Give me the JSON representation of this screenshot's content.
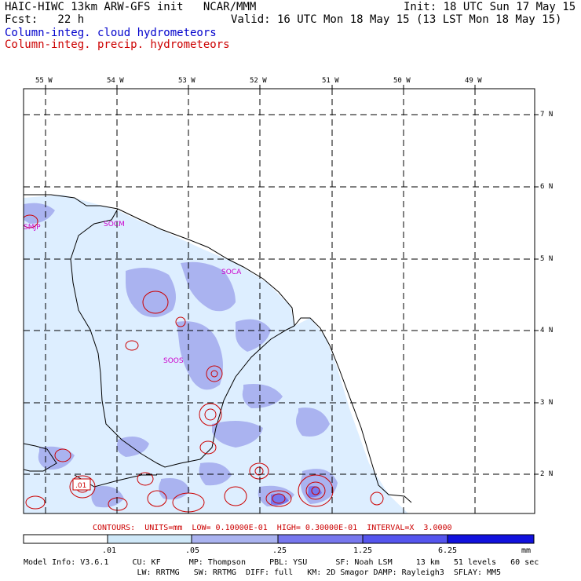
{
  "header": {
    "title_left": "HAIC-HIWC 13km ARW-GFS init   NCAR/MMM",
    "init": "Init: 18 UTC Sun 17 May 15",
    "fcst": "Fcst:   22 h",
    "valid": "Valid: 16 UTC Mon 18 May 15 (13 LST Mon 18 May 15)",
    "field_cloud": "Column-integ. cloud hydrometeors",
    "field_precip": "Column-integ. precip. hydrometeors"
  },
  "map": {
    "lon_labels": [
      "55 W",
      "54 W",
      "53 W",
      "52 W",
      "51 W",
      "50 W",
      "49 W"
    ],
    "lat_labels": [
      "7 N",
      "6 N",
      "5 N",
      "4 N",
      "3 N",
      "2 N"
    ],
    "stations": [
      "SMJP",
      "SOCM",
      "SOCA",
      "SOOS"
    ],
    "contour_label": ".01",
    "colors": {
      "land_outline": "#000000",
      "cloud_light": "#ddeeff",
      "cloud_mid": "#aabbf0",
      "cloud_strong": "#7777ee",
      "precip_contour": "#cc0000",
      "station": "#cc00cc"
    }
  },
  "contours_info": "CONTOURS:  UNITS=mm  LOW= 0.10000E-01  HIGH= 0.30000E-01  INTERVAL=X  3.0000",
  "colorbar": {
    "ticks": [
      ".01",
      ".05",
      ".25",
      "1.25",
      "6.25"
    ],
    "unit": "mm",
    "colors": [
      "#ffffff",
      "#cfe8f8",
      "#aab3f0",
      "#7777ee",
      "#5555ee",
      "#1111dd"
    ]
  },
  "footer": {
    "line1": "Model Info: V3.6.1     CU: KF      MP: Thompson     PBL: YSU      SF: Noah LSM     13 km   51 levels   60 sec",
    "line2": "                        LW: RRTMG   SW: RRTMG  DIFF: full   KM: 2D Smagor DAMP: Rayleigh3  SFLAY: MM5"
  }
}
